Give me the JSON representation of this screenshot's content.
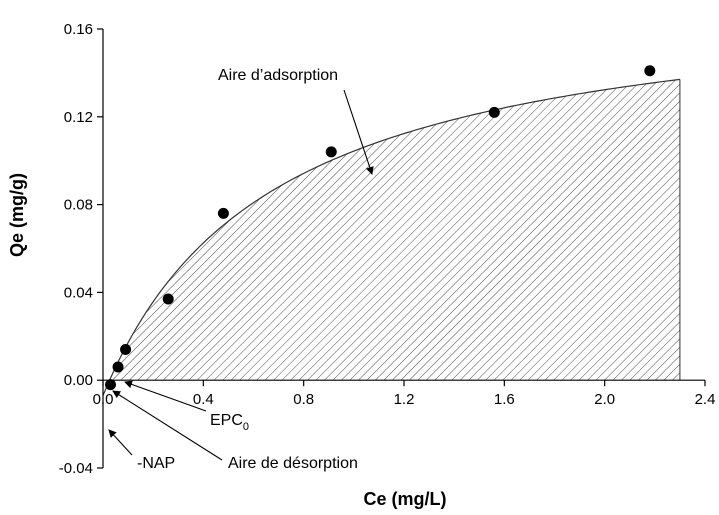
{
  "chart_data": {
    "type": "scatter",
    "title": "",
    "xlabel": "Ce (mg/L)",
    "ylabel": "Qe (mg/g)",
    "xlim": [
      0,
      2.4
    ],
    "ylim": [
      -0.04,
      0.16
    ],
    "x_ticks": [
      "0.0",
      "0.4",
      "0.8",
      "1.2",
      "1.6",
      "2.0",
      "2.4"
    ],
    "y_ticks": [
      "-0.04",
      "0.00",
      "0.04",
      "0.08",
      "0.12",
      "0.16"
    ],
    "grid": false,
    "series": [
      {
        "points": [
          {
            "x": 0.03,
            "y": -0.002
          },
          {
            "x": 0.06,
            "y": 0.006
          },
          {
            "x": 0.09,
            "y": 0.014
          },
          {
            "x": 0.26,
            "y": 0.037
          },
          {
            "x": 0.48,
            "y": 0.076
          },
          {
            "x": 0.91,
            "y": 0.104
          },
          {
            "x": 1.56,
            "y": 0.122
          },
          {
            "x": 2.18,
            "y": 0.141
          }
        ]
      }
    ],
    "fit_curve": {
      "x_range": [
        0,
        2.3
      ],
      "hatched_region": true
    },
    "annotations": [
      {
        "key": "adsorption",
        "text": "Aire d’adsorption"
      },
      {
        "key": "epc",
        "text": "EPC",
        "subscript": "0"
      },
      {
        "key": "desorption",
        "text": "Aire de désorption"
      },
      {
        "key": "nap",
        "text": "-NAP"
      }
    ]
  }
}
